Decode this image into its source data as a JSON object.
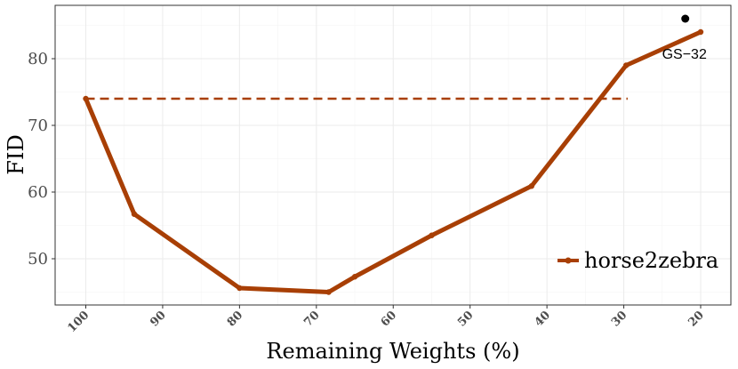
{
  "chart_data": {
    "type": "line",
    "xlabel": "Remaining Weights (%)",
    "ylabel": "FID",
    "x_reversed": true,
    "xlim": [
      100,
      20
    ],
    "ylim": [
      43,
      88
    ],
    "x_ticks": [
      100,
      90,
      80,
      70,
      60,
      50,
      40,
      30,
      20
    ],
    "x_tick_labels": [
      "100",
      "90",
      "80",
      "70",
      "60",
      "50",
      "40",
      "30",
      "20"
    ],
    "y_ticks": [
      50,
      60,
      70,
      80
    ],
    "y_tick_labels": [
      "50",
      "60",
      "70",
      "80"
    ],
    "grid": true,
    "legend_position": "bottom-right",
    "series": [
      {
        "name": "horse2zebra",
        "color": "#a83f05",
        "x": [
          100,
          93.7,
          80,
          68.4,
          65,
          55,
          42,
          29.7,
          20
        ],
        "values": [
          74,
          56.7,
          45.6,
          45.0,
          47.3,
          53.5,
          60.9,
          79,
          84
        ]
      }
    ],
    "baseline": {
      "y": 74,
      "x_from": 100,
      "x_to": 29.5,
      "style": "dashed",
      "color": "#a83f05"
    },
    "annotation": {
      "label": "GS−32",
      "x": 22,
      "y": 86,
      "color": "#000000"
    }
  }
}
